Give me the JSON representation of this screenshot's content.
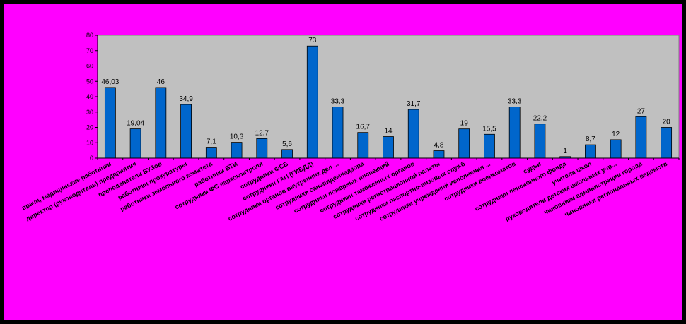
{
  "chart_data": {
    "type": "bar",
    "title": "",
    "xlabel": "",
    "ylabel": "",
    "ylim": [
      0,
      80
    ],
    "yticks": [
      0,
      10,
      20,
      30,
      40,
      50,
      60,
      70,
      80
    ],
    "grid": false,
    "legend": "none",
    "categories": [
      "врачи, медицинские работники",
      "директор (руководитель) предприятия",
      "преподаватели ВУЗов",
      "работники прокуратуры",
      "работники земельного комитета",
      "работники БТИ",
      "сотрудники ФС наркоконтроля",
      "сотрудники ФСБ",
      "сотрудники ГАИ (ГИБДД)",
      "сотрудники органов внутренних дел ...",
      "сотрудники санэпидемнадзора",
      "сотрудники пожарных инспекций",
      "сотрудники таможенных органов",
      "сотрудники регистрационной палаты",
      "сотрудники паспортно-визовых служб",
      "сотрудники учреждений исполнения ...",
      "сотрудники военкоматов",
      "судьи",
      "сотрудники пенсионного фонда",
      "учителя школ",
      "руководители детских школьных учр...",
      "чиновники администрации города",
      "чиновники региональных ведомств"
    ],
    "values": [
      46.03,
      19.04,
      46,
      34.9,
      7.1,
      10.3,
      12.7,
      5.6,
      73,
      33.3,
      16.7,
      14,
      31.7,
      4.8,
      19,
      15.5,
      33.3,
      22.2,
      1,
      8.7,
      12,
      27,
      20
    ],
    "value_labels": [
      "46,03",
      "19,04",
      "46",
      "34,9",
      "7,1",
      "10,3",
      "12,7",
      "5,6",
      "73",
      "33,3",
      "16,7",
      "14",
      "31,7",
      "4,8",
      "19",
      "15,5",
      "33,3",
      "22,2",
      "1",
      "8,7",
      "12",
      "27",
      "20"
    ],
    "colors": {
      "background": "#ff00ff",
      "border": "#000000",
      "plot_area": "#c0c0c0",
      "bar": "#0066cc",
      "bar_edge": "#000000",
      "text": "#000000"
    }
  }
}
